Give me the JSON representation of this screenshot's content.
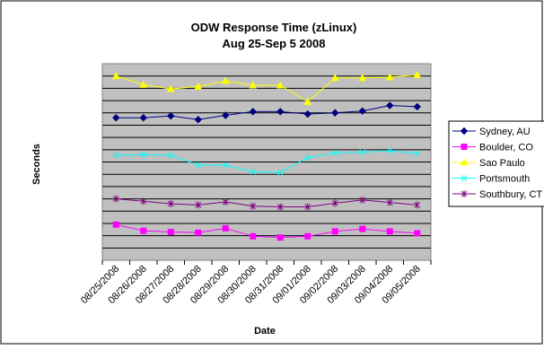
{
  "chart_data": {
    "type": "line",
    "title_line1": "ODW Response Time (zLinux)",
    "title_line2": "Aug 25-Sep 5 2008",
    "xlabel": "Date",
    "ylabel": "Seconds",
    "categories": [
      "08/25/2008",
      "08/26/2008",
      "08/27/2008",
      "08/28/2008",
      "08/29/2008",
      "08/30/2008",
      "08/31/2008",
      "09/01/2008",
      "09/02/2008",
      "09/03/2008",
      "09/04/2008",
      "09/05/2008"
    ],
    "ylim": [
      0,
      16
    ],
    "grid": true,
    "y_tick_labels_shown": false,
    "legend_position": "right",
    "plot_background": "#c0c0c0",
    "series": [
      {
        "name": "Sydney, AU",
        "color": "#000080",
        "marker": "diamond",
        "values": [
          11.6,
          11.6,
          11.75,
          11.45,
          11.8,
          12.1,
          12.1,
          11.9,
          12.0,
          12.15,
          12.6,
          12.5
        ]
      },
      {
        "name": "Boulder, CO",
        "color": "#ff00ff",
        "marker": "square",
        "values": [
          2.9,
          2.4,
          2.3,
          2.25,
          2.6,
          1.95,
          1.85,
          1.95,
          2.35,
          2.55,
          2.35,
          2.2
        ]
      },
      {
        "name": "Sao Paulo",
        "color": "#ffff00",
        "marker": "triangle",
        "values": [
          15.0,
          14.3,
          13.95,
          14.15,
          14.6,
          14.25,
          14.25,
          12.9,
          14.85,
          14.85,
          14.9,
          15.1
        ]
      },
      {
        "name": "Portsmouth",
        "color": "#00ffff",
        "marker": "x",
        "values": [
          8.55,
          8.6,
          8.55,
          7.75,
          7.75,
          7.2,
          7.15,
          8.35,
          8.75,
          8.8,
          8.9,
          8.7
        ]
      },
      {
        "name": "Southbury, CT",
        "color": "#800080",
        "marker": "star",
        "values": [
          5.0,
          4.8,
          4.6,
          4.5,
          4.75,
          4.4,
          4.35,
          4.35,
          4.65,
          4.9,
          4.7,
          4.5
        ]
      }
    ]
  }
}
